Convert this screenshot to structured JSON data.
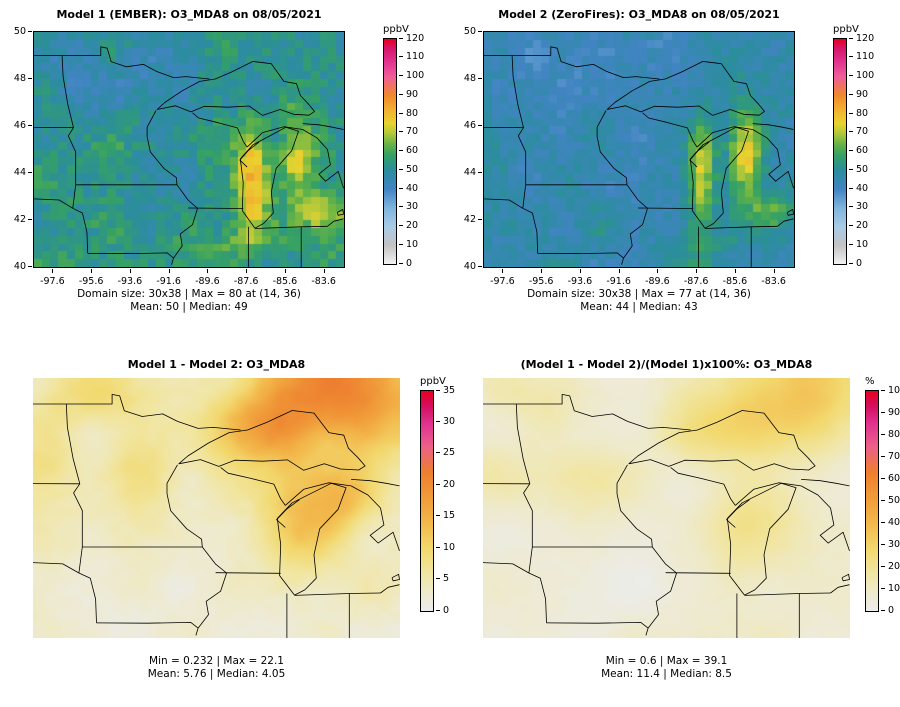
{
  "figure": {
    "background": "#ffffff",
    "text_color": "#000000"
  },
  "palettes": {
    "rainbow_gray": [
      [
        0,
        "#f2f2f2"
      ],
      [
        0.083,
        "#c3c3c3"
      ],
      [
        0.167,
        "#a9cbe5"
      ],
      [
        0.25,
        "#7fb5dc"
      ],
      [
        0.333,
        "#4184c2"
      ],
      [
        0.417,
        "#2b8d9e"
      ],
      [
        0.483,
        "#35a164"
      ],
      [
        0.533,
        "#67b345"
      ],
      [
        0.583,
        "#b5c93a"
      ],
      [
        0.625,
        "#e8d42f"
      ],
      [
        0.683,
        "#f2b231"
      ],
      [
        0.75,
        "#f0892c"
      ],
      [
        0.833,
        "#ef5e9c"
      ],
      [
        0.9,
        "#e0338f"
      ],
      [
        0.958,
        "#d6176b"
      ],
      [
        1,
        "#e8001c"
      ]
    ],
    "warm": [
      [
        0,
        "#ececec"
      ],
      [
        0.08,
        "#eeeacf"
      ],
      [
        0.18,
        "#f1e59e"
      ],
      [
        0.28,
        "#f2d96e"
      ],
      [
        0.4,
        "#f2b84b"
      ],
      [
        0.52,
        "#f09a39"
      ],
      [
        0.63,
        "#ed7f2f"
      ],
      [
        0.75,
        "#ec5f8a"
      ],
      [
        0.85,
        "#e03390"
      ],
      [
        0.93,
        "#d40f62"
      ],
      [
        1,
        "#e8001c"
      ]
    ]
  },
  "chart_data": [
    {
      "type": "heatmap",
      "panel": "top-left",
      "title": "Model 1 (EMBER): O3_MDA8 on 08/05/2021",
      "grid_cols": 38,
      "grid_rows": 30,
      "x_range": [
        -98.6,
        -82.6
      ],
      "y_range": [
        40,
        50
      ],
      "axes": {
        "x_ticks": [
          -97.6,
          -95.6,
          -93.6,
          -91.6,
          -89.6,
          -87.6,
          -85.6,
          -83.6
        ],
        "y_ticks": [
          40,
          42,
          44,
          46,
          48,
          50
        ]
      },
      "colorbar": {
        "unit": "ppbV",
        "min": 0,
        "max": 120,
        "tick_step": 10
      },
      "stats": {
        "domain_size": "30x38",
        "max": 80,
        "max_at": "(14, 36)",
        "mean": 50,
        "median": 49
      },
      "caption_lines": [
        "Domain size: 30x38 | Max = 80 at (14, 36)",
        "Mean: 50 |  Median: 49"
      ],
      "render": {
        "palette": "rainbow_gray",
        "smooth": false,
        "seed": 3,
        "base": 52,
        "noise_scale": 0.55,
        "noise_amp": 6,
        "cell_noise": 5,
        "blobs": [
          {
            "cx": -87.35,
            "cy": 43.9,
            "sx": 0.55,
            "sy": 1.6,
            "amp": 26
          },
          {
            "cx": -85.05,
            "cy": 44.9,
            "sx": 0.6,
            "sy": 1.2,
            "amp": 24
          },
          {
            "cx": -83.8,
            "cy": 42.35,
            "sx": 0.9,
            "sy": 0.55,
            "amp": 16
          },
          {
            "cx": -88.5,
            "cy": 40.8,
            "sx": 2.5,
            "sy": 0.9,
            "amp": 8
          },
          {
            "cx": -95.5,
            "cy": 48.6,
            "sx": 2.4,
            "sy": 1.3,
            "amp": -7
          },
          {
            "cx": -91.5,
            "cy": 47.5,
            "sx": 1.6,
            "sy": 1.1,
            "amp": -4
          },
          {
            "cx": -97.8,
            "cy": 43.8,
            "sx": 1.2,
            "sy": 1.8,
            "amp": 5
          }
        ]
      }
    },
    {
      "type": "heatmap",
      "panel": "top-right",
      "title": "Model 2 (ZeroFires): O3_MDA8 on 08/05/2021",
      "grid_cols": 38,
      "grid_rows": 30,
      "x_range": [
        -98.6,
        -82.6
      ],
      "y_range": [
        40,
        50
      ],
      "axes": {
        "x_ticks": [
          -97.6,
          -95.6,
          -93.6,
          -91.6,
          -89.6,
          -87.6,
          -85.6,
          -83.6
        ],
        "y_ticks": [
          40,
          42,
          44,
          46,
          48,
          50
        ]
      },
      "colorbar": {
        "unit": "ppbV",
        "min": 0,
        "max": 120,
        "tick_step": 10
      },
      "stats": {
        "domain_size": "30x38",
        "max": 77,
        "max_at": "(14, 36)",
        "mean": 44,
        "median": 43
      },
      "caption_lines": [
        "Domain size: 30x38 | Max = 77 at (14, 36)",
        "Mean: 44 |  Median: 43"
      ],
      "render": {
        "palette": "rainbow_gray",
        "smooth": false,
        "seed": 11,
        "base": 45,
        "noise_scale": 0.55,
        "noise_amp": 5,
        "cell_noise": 4,
        "blobs": [
          {
            "cx": -87.35,
            "cy": 43.9,
            "sx": 0.5,
            "sy": 1.6,
            "amp": 30
          },
          {
            "cx": -85.05,
            "cy": 44.9,
            "sx": 0.55,
            "sy": 1.2,
            "amp": 28
          },
          {
            "cx": -83.8,
            "cy": 42.35,
            "sx": 0.9,
            "sy": 0.55,
            "amp": 16
          },
          {
            "cx": -88.5,
            "cy": 40.8,
            "sx": 2.5,
            "sy": 0.9,
            "amp": 5
          },
          {
            "cx": -93.5,
            "cy": 48.8,
            "sx": 3.0,
            "sy": 1.3,
            "amp": -4
          }
        ]
      }
    },
    {
      "type": "heatmap",
      "panel": "bottom-left",
      "title": "Model 1 - Model 2: O3_MDA8",
      "grid_cols": 38,
      "grid_rows": 30,
      "x_range": [
        -98.6,
        -82.6
      ],
      "y_range": [
        40,
        50
      ],
      "axes": null,
      "colorbar": {
        "unit": "ppbV",
        "min": 0,
        "max": 35,
        "tick_step": 5
      },
      "stats": {
        "min": 0.232,
        "max": 22.1,
        "mean": 5.76,
        "median": 4.05
      },
      "caption_lines": [
        "Min = 0.232 | Max = 22.1",
        "Mean: 5.76 |  Median: 4.05"
      ],
      "render": {
        "palette": "warm",
        "smooth": true,
        "seed": 5,
        "base": 3.5,
        "noise_scale": 0.5,
        "noise_amp": 2,
        "cell_noise": 0.6,
        "blobs": [
          {
            "cx": -85.2,
            "cy": 49.6,
            "sx": 2.6,
            "sy": 1.6,
            "amp": 18
          },
          {
            "cx": -88.5,
            "cy": 48.0,
            "sx": 1.6,
            "sy": 1.0,
            "amp": 9
          },
          {
            "cx": -86.9,
            "cy": 44.4,
            "sx": 1.3,
            "sy": 1.4,
            "amp": 9
          },
          {
            "cx": -84.8,
            "cy": 45.4,
            "sx": 1.0,
            "sy": 0.9,
            "amp": 7
          },
          {
            "cx": -95.9,
            "cy": 49.4,
            "sx": 1.7,
            "sy": 0.9,
            "amp": 6
          },
          {
            "cx": -93.9,
            "cy": 46.3,
            "sx": 1.3,
            "sy": 1.1,
            "amp": 4.5
          },
          {
            "cx": -98.2,
            "cy": 46.6,
            "sx": 1.1,
            "sy": 1.0,
            "amp": 3.5
          },
          {
            "cx": -95.0,
            "cy": 41.5,
            "sx": 3.0,
            "sy": 1.5,
            "amp": -2
          }
        ]
      }
    },
    {
      "type": "heatmap",
      "panel": "bottom-right",
      "title": "(Model 1 - Model 2)/(Model 1)x100%: O3_MDA8",
      "grid_cols": 38,
      "grid_rows": 30,
      "x_range": [
        -98.6,
        -82.6
      ],
      "y_range": [
        40,
        50
      ],
      "axes": null,
      "colorbar": {
        "unit": "%",
        "min": 0,
        "max": 100,
        "tick_step": 10
      },
      "stats": {
        "min": 0.6,
        "max": 39.1,
        "mean": 11.4,
        "median": 8.5
      },
      "caption_lines": [
        "Min = 0.6 | Max = 39.1",
        "Mean: 11.4 |  Median: 8.5"
      ],
      "render": {
        "palette": "warm",
        "smooth": true,
        "seed": 9,
        "base": 7,
        "noise_scale": 0.5,
        "noise_amp": 4,
        "cell_noise": 1,
        "blobs": [
          {
            "cx": -85.2,
            "cy": 49.5,
            "sx": 2.4,
            "sy": 1.5,
            "amp": 27
          },
          {
            "cx": -88.5,
            "cy": 48.0,
            "sx": 1.6,
            "sy": 1.0,
            "amp": 14
          },
          {
            "cx": -86.6,
            "cy": 44.5,
            "sx": 1.4,
            "sy": 1.5,
            "amp": 15
          },
          {
            "cx": -95.9,
            "cy": 49.4,
            "sx": 1.7,
            "sy": 0.9,
            "amp": 10
          },
          {
            "cx": -93.9,
            "cy": 46.3,
            "sx": 1.4,
            "sy": 1.2,
            "amp": 8
          },
          {
            "cx": -98.2,
            "cy": 46.6,
            "sx": 1.1,
            "sy": 1.0,
            "amp": 6
          },
          {
            "cx": -92.5,
            "cy": 41.8,
            "sx": 3.0,
            "sy": 1.5,
            "amp": -3
          }
        ]
      }
    }
  ]
}
